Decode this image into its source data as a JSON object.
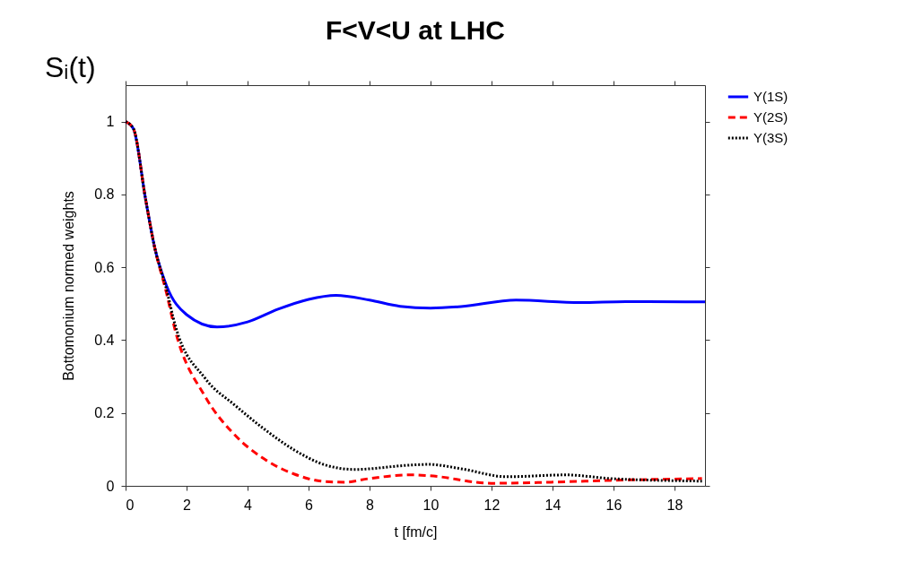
{
  "chart_data": {
    "type": "line",
    "title": "F<V<U at LHC",
    "xlabel": "t [fm/c]",
    "ylabel": "Bottomonium normed weights",
    "annotations": [
      "Sᵢ(t)"
    ],
    "xlim": [
      0,
      19
    ],
    "xticks": [
      0,
      2,
      4,
      6,
      8,
      10,
      12,
      14,
      16,
      18
    ],
    "ylim": [
      0,
      1.1
    ],
    "yticks": [
      0,
      0.2,
      0.4,
      0.6,
      0.8,
      1
    ],
    "grid": false,
    "legend": "top right",
    "series": [
      {
        "name": "Y(1S)",
        "color": "#0000ff",
        "line_style": "solid",
        "x": [
          0,
          0.26,
          0.65,
          0.95,
          1.34,
          2.0,
          3.0,
          4.0,
          5.0,
          6.0,
          6.9,
          8.0,
          9.0,
          10.0,
          11.0,
          12.8,
          14.9,
          16.4,
          19
        ],
        "values": [
          1.0,
          0.98,
          0.79,
          0.656,
          0.55,
          0.47,
          0.436,
          0.45,
          0.485,
          0.512,
          0.523,
          0.51,
          0.493,
          0.488,
          0.492,
          0.51,
          0.503,
          0.506,
          0.505
        ]
      },
      {
        "name": "Y(2S)",
        "color": "#ff0000",
        "line_style": "dashed",
        "x": [
          0,
          0.26,
          0.65,
          0.95,
          1.34,
          1.63,
          2.61,
          3.59,
          4.56,
          5.54,
          6.52,
          7.2,
          7.99,
          9.35,
          9.94,
          11.99,
          13.95,
          15.9,
          18.9
        ],
        "values": [
          1.0,
          0.98,
          0.79,
          0.656,
          0.53,
          0.426,
          0.245,
          0.139,
          0.073,
          0.032,
          0.012,
          0.01,
          0.02,
          0.03,
          0.028,
          0.007,
          0.01,
          0.015,
          0.02
        ]
      },
      {
        "name": "Y(3S)",
        "color": "#000000",
        "line_style": "dotted",
        "x": [
          0,
          0.26,
          0.65,
          0.95,
          1.34,
          1.63,
          2.61,
          3.59,
          4.56,
          5.54,
          6.52,
          7.5,
          9.35,
          9.94,
          11.0,
          12.5,
          14.45,
          15.9,
          18.9
        ],
        "values": [
          1.0,
          0.98,
          0.79,
          0.656,
          0.54,
          0.44,
          0.295,
          0.221,
          0.155,
          0.098,
          0.058,
          0.045,
          0.057,
          0.059,
          0.047,
          0.025,
          0.03,
          0.02,
          0.013
        ]
      }
    ]
  }
}
